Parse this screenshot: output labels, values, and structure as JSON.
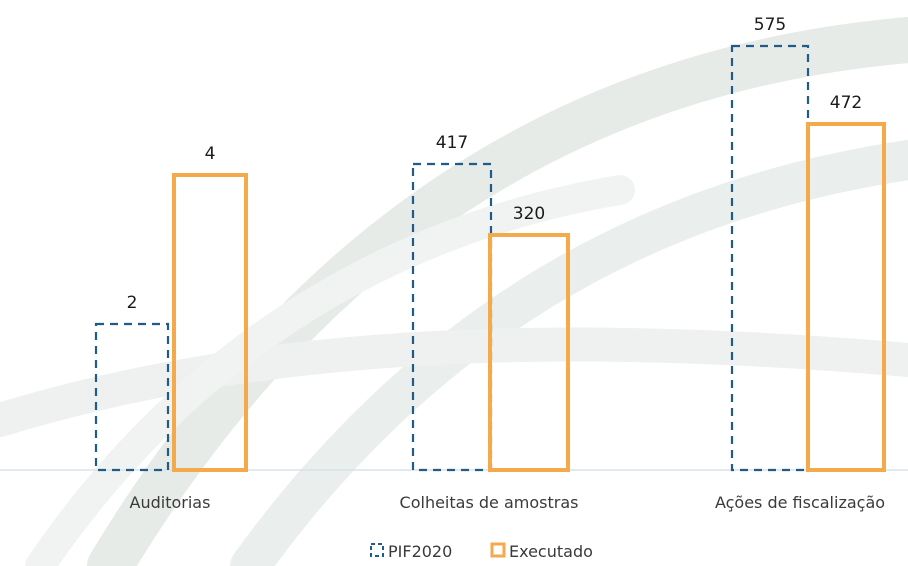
{
  "chart_data": {
    "type": "bar",
    "categories": [
      "Auditorias",
      "Colheitas de amostras",
      "Ações de fiscalização"
    ],
    "series": [
      {
        "name": "PIF2020",
        "values": [
          2,
          417,
          575
        ],
        "style": "dashed-outline",
        "color": "#1f5c8a"
      },
      {
        "name": "Executado",
        "values": [
          4,
          320,
          472
        ],
        "style": "solid-outline",
        "color": "#f4a94a"
      }
    ],
    "value_labels": {
      "PIF2020": [
        "2",
        "417",
        "575"
      ],
      "Executado": [
        "4",
        "320",
        "472"
      ]
    },
    "scale": "non-linear (bars per category not to a shared scale)",
    "legend": {
      "position": "bottom-center",
      "entries": [
        "PIF2020",
        "Executado"
      ]
    },
    "grid": false,
    "baseline_color": "#c8dbe6"
  }
}
